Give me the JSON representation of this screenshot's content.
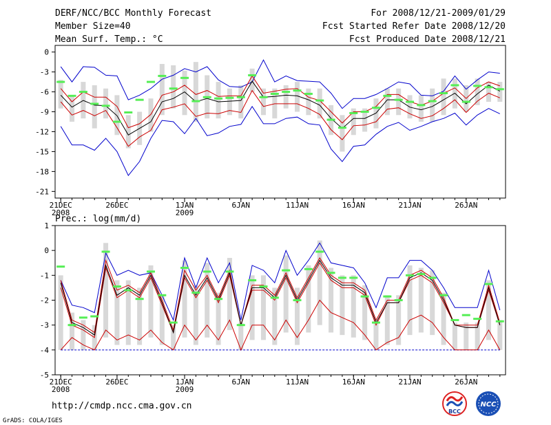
{
  "header": {
    "title": "DERF/NCC/BCC Monthly Forecast",
    "member_size": "Member Size=40",
    "variable": "Mean Surf. Temp.: °C",
    "period": "For 2008/12/21-2009/01/29",
    "fcst_started": "Fcst Started Refer Date 2008/12/20",
    "fcst_produced": "Fcst Produced Date 2008/12/21"
  },
  "footer": {
    "url": "http://cmdp.ncc.cma.gov.cn",
    "grads": "GrADS: COLA/IGES",
    "logo_bcc": "BCC",
    "logo_ncc": "NCC"
  },
  "colors": {
    "envelope": "#0000cc",
    "spread": "#cc0000",
    "mean": "#000000",
    "marker": "#55ee55",
    "box": "#d8d8d8",
    "frame": "#000000"
  },
  "chart_data": [
    {
      "type": "line",
      "title": "Mean Surf. Temp.: °C",
      "xlabel": "",
      "ylabel": "°C",
      "ylim": [
        -22,
        1
      ],
      "yticks": [
        0,
        -3,
        -6,
        -9,
        -12,
        -15,
        -18,
        -21
      ],
      "xlim": [
        0.5,
        40.5
      ],
      "xticks": [
        {
          "day": 1,
          "label": "21DEC",
          "sub": "2008"
        },
        {
          "day": 6,
          "label": "26DEC",
          "sub": ""
        },
        {
          "day": 12,
          "label": "1JAN",
          "sub": "2009"
        },
        {
          "day": 17,
          "label": "6JAN",
          "sub": ""
        },
        {
          "day": 22,
          "label": "11JAN",
          "sub": ""
        },
        {
          "day": 27,
          "label": "16JAN",
          "sub": ""
        },
        {
          "day": 32,
          "label": "21JAN",
          "sub": ""
        },
        {
          "day": 37,
          "label": "26JAN",
          "sub": ""
        }
      ],
      "x": [
        1,
        2,
        3,
        4,
        5,
        6,
        7,
        8,
        9,
        10,
        11,
        12,
        13,
        14,
        15,
        16,
        17,
        18,
        19,
        20,
        21,
        22,
        23,
        24,
        25,
        26,
        27,
        28,
        29,
        30,
        31,
        32,
        33,
        34,
        35,
        36,
        37,
        38,
        39,
        40
      ],
      "series": [
        {
          "name": "max",
          "color": "#0000cc",
          "values": [
            -2.2,
            -4.5,
            -2.2,
            -2.3,
            -3.5,
            -3.6,
            -7.2,
            -6.5,
            -5.5,
            -4.1,
            -3.5,
            -2.5,
            -3.0,
            -2.2,
            -4.2,
            -5.2,
            -5.3,
            -4.5,
            -1.2,
            -4.5,
            -3.6,
            -4.3,
            -4.4,
            -4.5,
            -6.2,
            -8.5,
            -7.0,
            -7.0,
            -6.4,
            -5.5,
            -4.5,
            -4.8,
            -6.5,
            -6.6,
            -5.9,
            -3.6,
            -5.6,
            -4.2,
            -3.0,
            -3.2
          ]
        },
        {
          "name": "upper",
          "color": "#cc0000",
          "values": [
            -5.5,
            -7.5,
            -6.0,
            -6.8,
            -6.8,
            -8.2,
            -11.4,
            -10.8,
            -9.4,
            -6.5,
            -6.0,
            -5.0,
            -6.4,
            -5.8,
            -6.7,
            -6.6,
            -6.6,
            -3.6,
            -6.2,
            -5.9,
            -5.6,
            -5.5,
            -6.8,
            -7.3,
            -9.0,
            -10.7,
            -9.0,
            -9.0,
            -8.2,
            -6.4,
            -6.4,
            -7.5,
            -8.0,
            -7.4,
            -6.2,
            -5.4,
            -7.0,
            -5.4,
            -4.5,
            -5.1
          ]
        },
        {
          "name": "mean",
          "color": "#000000",
          "values": [
            -6.5,
            -8.3,
            -7.3,
            -8.0,
            -8.1,
            -9.6,
            -12.5,
            -11.5,
            -10.5,
            -7.5,
            -7.0,
            -6.0,
            -7.5,
            -7.0,
            -7.5,
            -7.4,
            -7.3,
            -4.4,
            -6.8,
            -6.7,
            -6.5,
            -6.6,
            -7.2,
            -8.0,
            -10.0,
            -11.5,
            -10.0,
            -10.0,
            -9.2,
            -7.2,
            -7.2,
            -8.3,
            -8.7,
            -8.2,
            -7.2,
            -6.2,
            -7.8,
            -6.3,
            -5.0,
            -5.9
          ]
        },
        {
          "name": "lower",
          "color": "#cc0000",
          "values": [
            -7.5,
            -9.5,
            -8.8,
            -9.6,
            -8.8,
            -11.4,
            -14.2,
            -12.8,
            -11.8,
            -8.7,
            -8.3,
            -7.8,
            -9.7,
            -9.2,
            -9.3,
            -8.8,
            -9.1,
            -5.8,
            -8.2,
            -7.8,
            -7.8,
            -7.8,
            -8.5,
            -9.4,
            -11.7,
            -13.2,
            -11.1,
            -11.0,
            -10.5,
            -8.6,
            -8.4,
            -9.3,
            -10.0,
            -9.6,
            -8.5,
            -7.2,
            -9.1,
            -7.4,
            -6.2,
            -6.9
          ]
        },
        {
          "name": "min",
          "color": "#0000cc",
          "values": [
            -11.2,
            -14.0,
            -14.0,
            -14.8,
            -13.0,
            -15.0,
            -18.6,
            -16.5,
            -13.0,
            -10.3,
            -10.5,
            -12.3,
            -10.0,
            -12.6,
            -12.2,
            -11.2,
            -10.9,
            -8.2,
            -10.8,
            -10.8,
            -10.0,
            -9.8,
            -10.8,
            -11.0,
            -14.6,
            -16.5,
            -14.2,
            -14.0,
            -12.4,
            -11.2,
            -10.6,
            -11.8,
            -11.2,
            -10.5,
            -10.0,
            -9.2,
            -11.0,
            -9.5,
            -8.5,
            -9.3
          ]
        },
        {
          "name": "box_top",
          "color": "#d8d8d8",
          "values": [
            -4.2,
            -6.5,
            -4.5,
            -5.0,
            -5.5,
            -6.5,
            -9.5,
            -9.0,
            -7.0,
            -1.8,
            -2.0,
            -2.8,
            -1.5,
            -3.5,
            -4.5,
            -5.5,
            -5.0,
            -2.5,
            -5.5,
            -5.5,
            -5.0,
            -4.5,
            -5.5,
            -5.5,
            -8.0,
            -9.5,
            -8.5,
            -8.5,
            -7.0,
            -5.5,
            -5.5,
            -6.5,
            -6.5,
            -5.5,
            -4.0,
            -4.0,
            -5.0,
            -4.0,
            -4.5,
            -4.5
          ]
        },
        {
          "name": "box_bottom",
          "color": "#d8d8d8",
          "values": [
            -8.5,
            -10.5,
            -10.0,
            -11.5,
            -10.0,
            -12.5,
            -14.5,
            -14.0,
            -12.0,
            -9.5,
            -8.5,
            -9.5,
            -10.5,
            -10.0,
            -10.0,
            -9.5,
            -10.0,
            -6.0,
            -9.5,
            -10.0,
            -8.5,
            -9.0,
            -9.5,
            -10.0,
            -12.5,
            -15.0,
            -12.5,
            -12.0,
            -11.5,
            -9.5,
            -9.5,
            -10.0,
            -10.5,
            -10.5,
            -9.5,
            -8.5,
            -9.0,
            -8.0,
            -7.5,
            -7.5
          ]
        },
        {
          "name": "observed",
          "color": "#55ee55",
          "values": [
            -4.5,
            -6.6,
            -6.0,
            -7.8,
            -8.1,
            -10.5,
            -9.1,
            -7.2,
            -4.5,
            -3.6,
            -5.5,
            -3.9,
            -7.4,
            -6.8,
            -7.0,
            -6.9,
            -6.8,
            -3.5,
            -6.8,
            -6.3,
            -6.0,
            -5.8,
            -6.3,
            -7.3,
            -10.2,
            -11.4,
            -9.2,
            -9.0,
            -8.4,
            -6.6,
            -7.2,
            -7.5,
            -8.0,
            -7.4,
            -6.2,
            -5.0,
            -7.5,
            -5.1,
            -5.3,
            -5.6
          ]
        }
      ]
    },
    {
      "type": "line",
      "title": "Prec.: log(mm/d)",
      "xlabel": "",
      "ylabel": "log(mm/d)",
      "ylim": [
        -5,
        1
      ],
      "yticks": [
        1,
        0,
        -1,
        -2,
        -3,
        -4,
        -5
      ],
      "xlim": [
        0.5,
        40.5
      ],
      "xticks": [
        {
          "day": 1,
          "label": "21DEC",
          "sub": "2008"
        },
        {
          "day": 6,
          "label": "26DEC",
          "sub": ""
        },
        {
          "day": 12,
          "label": "1JAN",
          "sub": "2009"
        },
        {
          "day": 17,
          "label": "6JAN",
          "sub": ""
        },
        {
          "day": 22,
          "label": "11JAN",
          "sub": ""
        },
        {
          "day": 27,
          "label": "16JAN",
          "sub": ""
        },
        {
          "day": 32,
          "label": "21JAN",
          "sub": ""
        },
        {
          "day": 37,
          "label": "26JAN",
          "sub": ""
        }
      ],
      "baseline": -4,
      "x": [
        1,
        2,
        3,
        4,
        5,
        6,
        7,
        8,
        9,
        10,
        11,
        12,
        13,
        14,
        15,
        16,
        17,
        18,
        19,
        20,
        21,
        22,
        23,
        24,
        25,
        26,
        27,
        28,
        29,
        30,
        31,
        32,
        33,
        34,
        35,
        36,
        37,
        38,
        39,
        40
      ],
      "series": [
        {
          "name": "max",
          "color": "#0000cc",
          "values": [
            -1.2,
            -2.2,
            -2.3,
            -2.5,
            -0.1,
            -1.0,
            -0.8,
            -1.0,
            -0.9,
            -1.8,
            -2.8,
            -0.3,
            -1.5,
            -0.3,
            -1.3,
            -0.5,
            -2.8,
            -0.6,
            -0.8,
            -1.3,
            0.0,
            -1.0,
            -0.4,
            0.3,
            -0.5,
            -0.6,
            -0.7,
            -1.3,
            -2.3,
            -1.1,
            -1.1,
            -0.4,
            -0.4,
            -0.8,
            -1.5,
            -2.3,
            -2.3,
            -2.3,
            -0.8,
            -2.4
          ]
        },
        {
          "name": "upper",
          "color": "#cc0000",
          "values": [
            -1.2,
            -2.8,
            -3.0,
            -3.3,
            -0.4,
            -1.6,
            -1.4,
            -1.7,
            -0.9,
            -2.0,
            -3.2,
            -0.8,
            -1.6,
            -1.0,
            -1.9,
            -0.8,
            -3.0,
            -1.4,
            -1.4,
            -1.8,
            -0.9,
            -1.9,
            -1.1,
            -0.3,
            -1.0,
            -1.3,
            -1.3,
            -1.6,
            -2.8,
            -2.0,
            -2.0,
            -1.0,
            -0.8,
            -1.1,
            -1.9,
            -3.0,
            -3.0,
            -3.0,
            -1.4,
            -2.9
          ]
        },
        {
          "name": "mean",
          "color": "#000000",
          "values": [
            -1.3,
            -2.9,
            -3.1,
            -3.4,
            -0.6,
            -1.8,
            -1.5,
            -1.8,
            -1.0,
            -2.1,
            -3.3,
            -1.0,
            -1.8,
            -1.1,
            -2.0,
            -0.9,
            -3.0,
            -1.5,
            -1.5,
            -1.9,
            -1.0,
            -2.0,
            -1.2,
            -0.4,
            -1.1,
            -1.4,
            -1.4,
            -1.7,
            -2.9,
            -2.1,
            -2.1,
            -1.1,
            -0.9,
            -1.2,
            -2.0,
            -3.0,
            -3.1,
            -3.1,
            -1.5,
            -3.0
          ]
        },
        {
          "name": "lower",
          "color": "#cc0000",
          "values": [
            -1.5,
            -3.0,
            -3.2,
            -3.5,
            -0.7,
            -1.9,
            -1.6,
            -1.9,
            -1.1,
            -2.2,
            -3.3,
            -1.1,
            -1.9,
            -1.2,
            -2.1,
            -1.0,
            -3.0,
            -1.6,
            -1.6,
            -2.0,
            -1.1,
            -2.1,
            -1.3,
            -0.5,
            -1.2,
            -1.5,
            -1.5,
            -1.8,
            -3.0,
            -2.1,
            -2.1,
            -1.2,
            -1.0,
            -1.3,
            -2.1,
            -3.0,
            -3.1,
            -3.1,
            -1.6,
            -3.0
          ]
        },
        {
          "name": "min",
          "color": "#cc0000",
          "values": [
            -4.0,
            -3.5,
            -3.8,
            -4.0,
            -3.2,
            -3.6,
            -3.4,
            -3.6,
            -3.2,
            -3.7,
            -4.0,
            -3.0,
            -3.6,
            -3.0,
            -3.6,
            -2.8,
            -4.0,
            -3.0,
            -3.0,
            -3.6,
            -2.8,
            -3.5,
            -2.8,
            -2.0,
            -2.5,
            -2.7,
            -2.9,
            -3.4,
            -4.0,
            -3.7,
            -3.5,
            -2.8,
            -2.6,
            -2.9,
            -3.5,
            -4.0,
            -4.0,
            -4.0,
            -3.2,
            -4.0
          ]
        },
        {
          "name": "box_top",
          "color": "#d8d8d8",
          "values": [
            -1.0,
            -2.5,
            -2.8,
            -3.0,
            0.3,
            -1.2,
            -1.2,
            -1.5,
            -0.6,
            -1.8,
            -3.0,
            -0.4,
            -1.4,
            -0.5,
            -1.7,
            -0.3,
            -2.9,
            -1.0,
            -1.0,
            -1.5,
            -0.2,
            -1.5,
            -0.6,
            0.4,
            -0.7,
            -1.0,
            -1.0,
            -1.4,
            -2.8,
            -1.8,
            -1.8,
            -0.6,
            -0.7,
            -0.8,
            -1.7,
            -2.9,
            -2.9,
            -2.9,
            -1.2,
            -2.8
          ]
        },
        {
          "name": "box_bottom",
          "color": "#d8d8d8",
          "values": [
            -4.0,
            -4.0,
            -4.0,
            -4.0,
            -3.5,
            -3.8,
            -3.8,
            -3.8,
            -3.5,
            -3.8,
            -4.0,
            -3.5,
            -3.8,
            -3.5,
            -3.8,
            -3.2,
            -4.0,
            -3.6,
            -3.6,
            -3.8,
            -3.3,
            -3.8,
            -3.3,
            -3.0,
            -3.3,
            -3.4,
            -3.5,
            -3.6,
            -4.0,
            -3.8,
            -3.8,
            -3.4,
            -3.3,
            -3.4,
            -3.8,
            -4.0,
            -4.0,
            -4.0,
            -3.6,
            -4.0
          ]
        },
        {
          "name": "observed",
          "color": "#55ee55",
          "values": [
            -0.65,
            -3.0,
            -2.7,
            -2.65,
            -0.05,
            -1.45,
            -1.6,
            -1.95,
            -0.85,
            -1.8,
            -2.9,
            -0.7,
            -1.7,
            -0.85,
            -1.95,
            -0.85,
            -3.0,
            -1.2,
            -1.45,
            -1.9,
            -0.8,
            -2.0,
            -0.75,
            -0.05,
            -0.9,
            -1.1,
            -1.1,
            -1.85,
            -2.9,
            -1.85,
            -2.0,
            -1.0,
            -0.95,
            -1.1,
            -1.8,
            -2.8,
            -2.6,
            -2.75,
            -1.35,
            -2.85
          ]
        }
      ]
    }
  ]
}
